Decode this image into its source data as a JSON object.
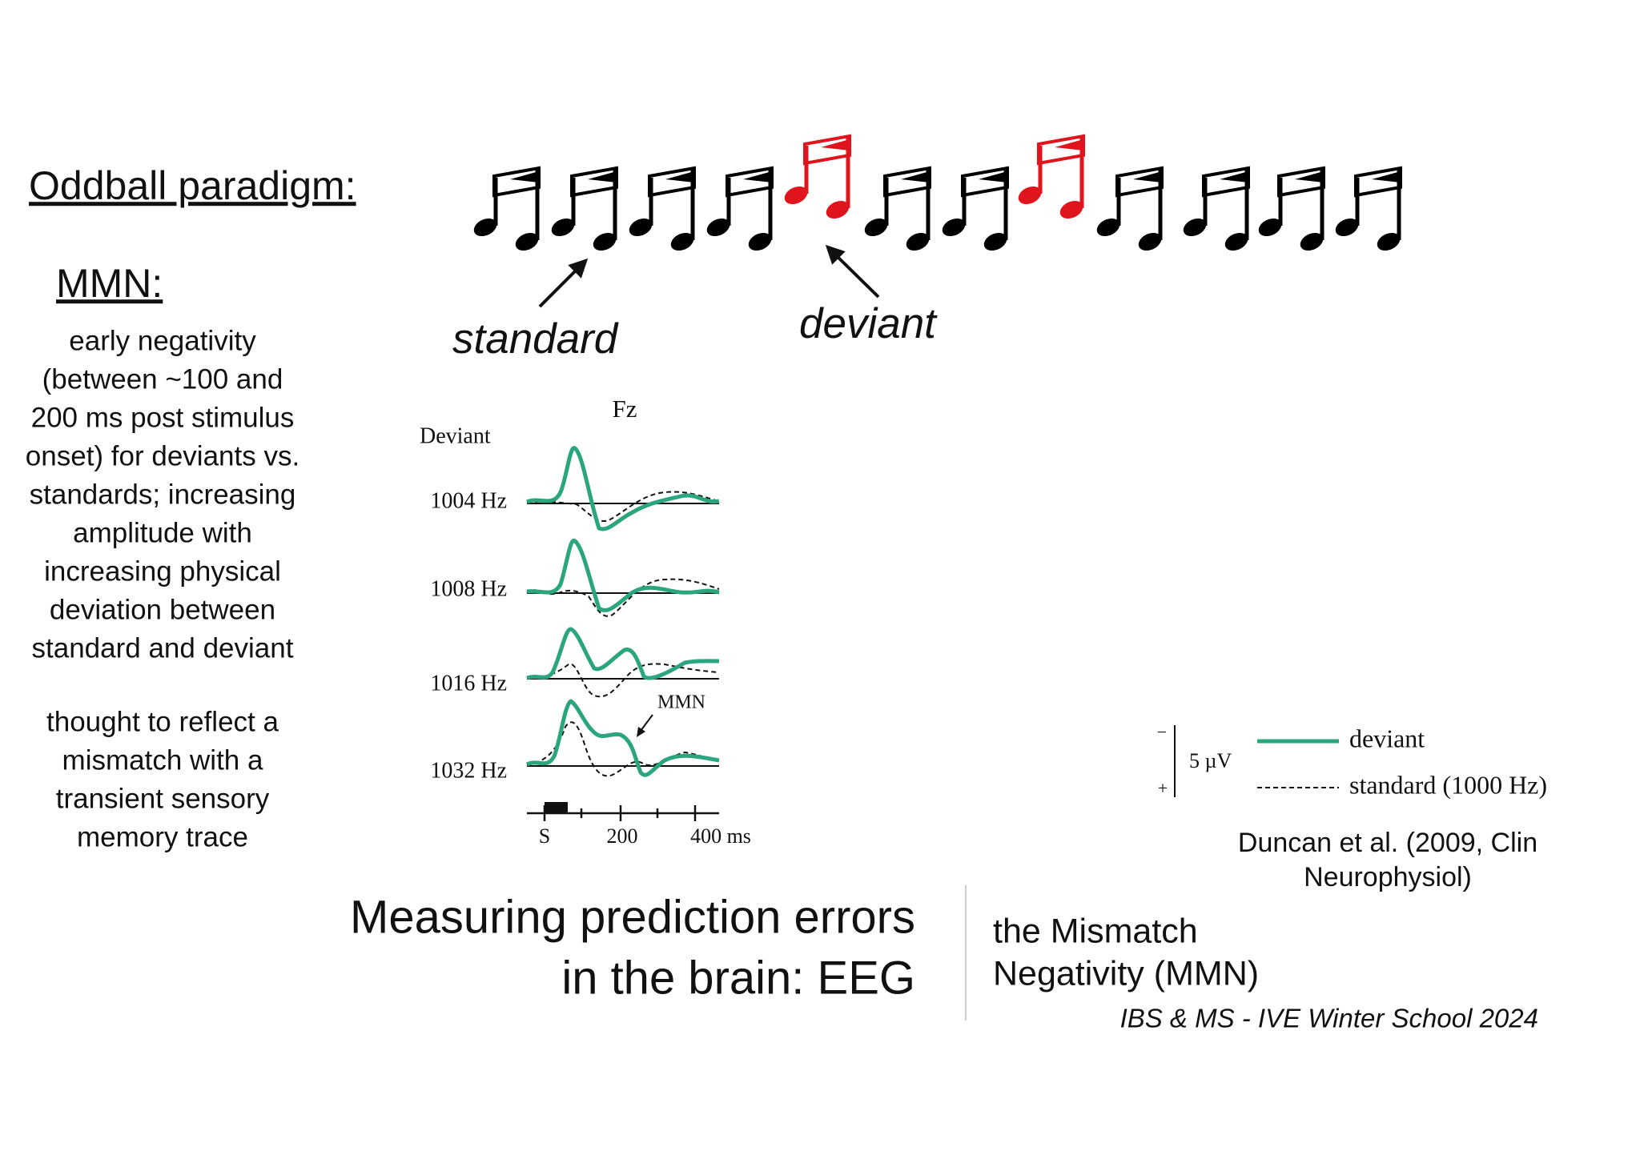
{
  "paradigm": {
    "label": "Oddball paradigm:",
    "standard": "standard",
    "deviant": "deviant"
  },
  "mmn": {
    "heading": "MMN:",
    "description": [
      "early negativity",
      "(between ~100 and",
      "200 ms post stimulus",
      "onset) for deviants vs.",
      "standards; increasing",
      "amplitude with",
      "increasing physical",
      "deviation between",
      "standard and deviant"
    ],
    "interpretation": [
      "thought to reflect a",
      "mismatch with a",
      "transient sensory",
      "memory trace"
    ]
  },
  "figure": {
    "electrode": "Fz",
    "condition": "Deviant",
    "rows": [
      "1004 Hz",
      "1008 Hz",
      "1016 Hz",
      "1032 Hz"
    ],
    "annotation": "MMN",
    "x_ticks": [
      "S",
      "200",
      "400 ms"
    ],
    "scale": {
      "minus": "−",
      "plus": "+",
      "amplitude": "5 µV"
    },
    "legend": [
      "deviant",
      "standard (1000 Hz)"
    ],
    "citation": [
      "Duncan et al. (2009, Clin",
      "Neurophysiol)"
    ]
  },
  "slide": {
    "title": [
      "Measuring prediction errors",
      "in the brain: EEG"
    ],
    "subtitle": [
      "the Mismatch",
      "Negativity (MMN)"
    ],
    "footer": "IBS & MS - IVE Winter School 2024"
  }
}
